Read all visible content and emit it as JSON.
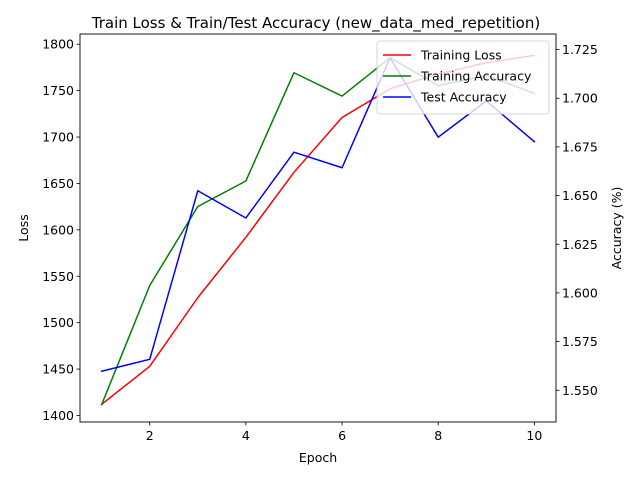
{
  "chart_data": {
    "type": "line",
    "title": "Train Loss & Train/Test Accuracy (new_data_med_repetition)",
    "xlabel": "Epoch",
    "ylabel_left": "Loss",
    "ylabel_right": "Accuracy (%)",
    "x": [
      1,
      2,
      3,
      4,
      5,
      6,
      7,
      8,
      9,
      10
    ],
    "xlim": [
      0.55,
      10.45
    ],
    "xticks": [
      2,
      4,
      6,
      8,
      10
    ],
    "ylim_left": [
      1393,
      1811
    ],
    "yticks_left": [
      1400,
      1450,
      1500,
      1550,
      1600,
      1650,
      1700,
      1750,
      1800
    ],
    "ylim_right": [
      1.5337,
      1.733
    ],
    "yticks_right": [
      1.55,
      1.575,
      1.6,
      1.625,
      1.65,
      1.675,
      1.7,
      1.725
    ],
    "yticks_right_labels": [
      "1.550",
      "1.575",
      "1.600",
      "1.625",
      "1.650",
      "1.675",
      "1.700",
      "1.725"
    ],
    "grid": false,
    "legend_position": "upper-right",
    "series": [
      {
        "name": "Training Loss",
        "axis": "left",
        "color": "#ff0000",
        "values": [
          1412,
          1453,
          1527,
          1592,
          1662,
          1721,
          1752,
          1768,
          1780,
          1788
        ]
      },
      {
        "name": "Training Accuracy",
        "axis": "right",
        "color": "#008000",
        "values": [
          1.5426,
          1.6038,
          1.6444,
          1.6575,
          1.7131,
          1.7011,
          1.7208,
          1.7065,
          1.7117,
          1.7025
        ]
      },
      {
        "name": "Test Accuracy",
        "axis": "right",
        "color": "#0000ff",
        "values": [
          1.5598,
          1.5659,
          1.6525,
          1.6385,
          1.6723,
          1.6643,
          1.7208,
          1.68,
          1.6986,
          1.6777
        ]
      }
    ]
  }
}
